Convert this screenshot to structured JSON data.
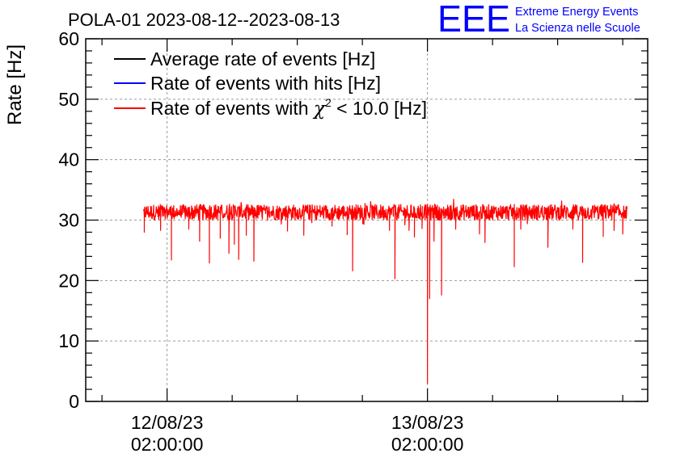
{
  "header": {
    "logo_mark": "EEE",
    "logo_line1": "Extreme Energy Events",
    "logo_line2": "La Scienza nelle Scuole"
  },
  "colors": {
    "average": "#000000",
    "hits": "#0000ff",
    "chi2": "#ff0000",
    "logo": "#0000ff",
    "grid": "#9a9a9a"
  },
  "chart_data": {
    "type": "line",
    "title": "POLA-01 2023-08-12--2023-08-13",
    "ylabel": "Rate [Hz]",
    "xlabel": "",
    "ylim": [
      0,
      60
    ],
    "yticks": [
      0,
      10,
      20,
      30,
      40,
      50,
      60
    ],
    "x_unit": "hours from 2023-08-11 22:00:00",
    "xlim": [
      -3.5,
      48.3
    ],
    "xticks": [
      {
        "x": 4,
        "label_line1": "12/08/23",
        "label_line2": "02:00:00"
      },
      {
        "x": 28,
        "label_line1": "13/08/23",
        "label_line2": "02:00:00"
      }
    ],
    "grid": true,
    "legend_position": "top-left",
    "series": [
      {
        "name": "Average rate of events [Hz]",
        "color": "#000000",
        "base": 31.3
      },
      {
        "name": "Rate of events with hits [Hz]",
        "color": "#0000ff",
        "base": 31.3
      },
      {
        "name": "Rate of events with χ² < 10.0 [Hz]",
        "legend_prefix": "Rate of events with ",
        "legend_chi": "χ",
        "legend_sup": "2",
        "legend_suffix": " < 10.0 [Hz]",
        "color": "#ff0000",
        "base": 31.3,
        "x_range": [
          1.8,
          46.4
        ],
        "dips": [
          {
            "x": 1.9,
            "y": 28.0
          },
          {
            "x": 3.4,
            "y": 28.3
          },
          {
            "x": 4.4,
            "y": 23.4
          },
          {
            "x": 6.0,
            "y": 28.5
          },
          {
            "x": 7.0,
            "y": 26.5
          },
          {
            "x": 7.9,
            "y": 22.9
          },
          {
            "x": 8.9,
            "y": 27.0
          },
          {
            "x": 9.7,
            "y": 24.5
          },
          {
            "x": 10.2,
            "y": 26.0
          },
          {
            "x": 10.6,
            "y": 23.5
          },
          {
            "x": 11.3,
            "y": 27.5
          },
          {
            "x": 12.0,
            "y": 23.2
          },
          {
            "x": 15.1,
            "y": 28.2
          },
          {
            "x": 16.6,
            "y": 27.5
          },
          {
            "x": 19.2,
            "y": 29.0
          },
          {
            "x": 20.6,
            "y": 27.6
          },
          {
            "x": 21.1,
            "y": 21.6
          },
          {
            "x": 24.5,
            "y": 28.3
          },
          {
            "x": 25.0,
            "y": 20.3
          },
          {
            "x": 26.3,
            "y": 28.3
          },
          {
            "x": 26.8,
            "y": 27.2
          },
          {
            "x": 27.5,
            "y": 28.6
          },
          {
            "x": 28.0,
            "y": 3.0
          },
          {
            "x": 28.2,
            "y": 17.0
          },
          {
            "x": 28.6,
            "y": 26.5
          },
          {
            "x": 29.3,
            "y": 17.6
          },
          {
            "x": 30.6,
            "y": 28.5
          },
          {
            "x": 32.8,
            "y": 27.7
          },
          {
            "x": 33.3,
            "y": 26.3
          },
          {
            "x": 36.0,
            "y": 22.3
          },
          {
            "x": 36.6,
            "y": 28.5
          },
          {
            "x": 39.1,
            "y": 25.5
          },
          {
            "x": 41.4,
            "y": 28.5
          },
          {
            "x": 42.3,
            "y": 23.0
          },
          {
            "x": 44.2,
            "y": 27.3
          },
          {
            "x": 45.2,
            "y": 28.3
          },
          {
            "x": 46.0,
            "y": 27.7
          }
        ]
      }
    ]
  }
}
